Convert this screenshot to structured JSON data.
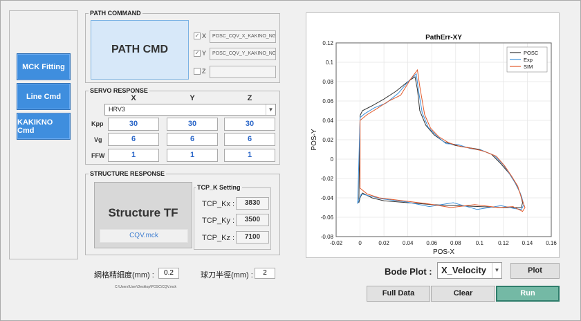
{
  "nav": {
    "mck_fitting": "MCK Fitting",
    "line_cmd": "Line Cmd",
    "kakikno_cmd": "KAKIKNO Cmd"
  },
  "path_command": {
    "title": "PATH COMMAND",
    "button_label": "PATH CMD",
    "x_label": "X",
    "y_label": "Y",
    "z_label": "Z",
    "x_checked": true,
    "y_checked": true,
    "z_checked": false,
    "x_file": "POSC_CQV_X_KAKINO_NG.c",
    "y_file": "POSC_CQV_Y_KAKINO_NG.c",
    "z_file": ""
  },
  "servo": {
    "title": "SERVO RESPONSE",
    "col_x": "X",
    "col_y": "Y",
    "col_z": "Z",
    "selected_model": "HRV3",
    "kpp_label": "Kpp",
    "vg_label": "Vg",
    "ffw_label": "FFW",
    "kpp": [
      "30",
      "30",
      "30"
    ],
    "vg": [
      "6",
      "6",
      "6"
    ],
    "ffw": [
      "1",
      "1",
      "1"
    ]
  },
  "structure": {
    "title": "STRUCTURE RESPONSE",
    "button_label": "Structure TF",
    "mck_file": "CQV.mck",
    "tcp_title": "TCP_K Setting",
    "kx_label": "TCP_Kx :",
    "ky_label": "TCP_Ky :",
    "kz_label": "TCP_Kz :",
    "kx": "3830",
    "ky": "3500",
    "kz": "7100"
  },
  "bottom": {
    "grid_label": "網格精細度(mm) :",
    "grid_value": "0.2",
    "radius_label": "球刀半徑(mm) :",
    "radius_value": "2",
    "path_text": "C:\\Users\\User\\Desktop\\POSC\\CQV.mck",
    "bode_label": "Bode Plot :",
    "bode_selected": "X_Velocity",
    "plot_button": "Plot",
    "full_data_button": "Full Data",
    "clear_button": "Clear",
    "run_button": "Run"
  },
  "chart_data": {
    "type": "line",
    "title": "PathErr-XY",
    "xlabel": "POS-X",
    "ylabel": "POS-Y",
    "xlim": [
      -0.02,
      0.16
    ],
    "ylim": [
      -0.08,
      0.12
    ],
    "xticks": [
      "-0.02",
      "0",
      "0.02",
      "0.04",
      "0.06",
      "0.08",
      "0.1",
      "0.12",
      "0.14",
      "0.16"
    ],
    "yticks": [
      "-0.08",
      "-0.06",
      "-0.04",
      "-0.02",
      "0",
      "0.02",
      "0.04",
      "0.06",
      "0.08",
      "0.1",
      "0.12"
    ],
    "grid": true,
    "legend_position": "top-right",
    "series": [
      {
        "name": "POSC",
        "color": "#333333",
        "x": [
          0.0,
          0.002,
          0.01,
          0.02,
          0.03,
          0.04,
          0.046,
          0.048,
          0.05,
          0.055,
          0.062,
          0.07,
          0.08,
          0.09,
          0.1,
          0.11,
          0.118,
          0.125,
          0.13,
          0.134,
          0.136,
          0.135,
          0.13,
          0.12,
          0.1,
          0.08,
          0.06,
          0.04,
          0.02,
          0.01,
          0.002,
          0.0,
          -0.001,
          0.0
        ],
        "y": [
          0.045,
          0.05,
          0.055,
          0.062,
          0.07,
          0.08,
          0.085,
          0.072,
          0.05,
          0.035,
          0.025,
          0.018,
          0.014,
          0.012,
          0.01,
          0.005,
          -0.005,
          -0.015,
          -0.025,
          -0.035,
          -0.045,
          -0.05,
          -0.05,
          -0.05,
          -0.049,
          -0.048,
          -0.047,
          -0.045,
          -0.043,
          -0.04,
          -0.035,
          -0.04,
          -0.045,
          0.045
        ]
      },
      {
        "name": "Exp",
        "color": "#3b8fd9",
        "x": [
          0.0,
          0.004,
          0.012,
          0.022,
          0.032,
          0.041,
          0.047,
          0.049,
          0.052,
          0.057,
          0.064,
          0.072,
          0.082,
          0.092,
          0.102,
          0.112,
          0.12,
          0.126,
          0.131,
          0.135,
          0.137,
          0.135,
          0.129,
          0.118,
          0.098,
          0.078,
          0.058,
          0.038,
          0.018,
          0.008,
          0.001,
          -0.002,
          0.0
        ],
        "y": [
          0.043,
          0.047,
          0.053,
          0.058,
          0.068,
          0.081,
          0.088,
          0.07,
          0.048,
          0.033,
          0.024,
          0.016,
          0.015,
          0.011,
          0.009,
          0.004,
          -0.006,
          -0.017,
          -0.027,
          -0.038,
          -0.047,
          -0.052,
          -0.051,
          -0.048,
          -0.052,
          -0.045,
          -0.049,
          -0.044,
          -0.041,
          -0.038,
          -0.036,
          -0.046,
          0.043
        ]
      },
      {
        "name": "SIM",
        "color": "#e2592a",
        "x": [
          0.0,
          0.006,
          0.014,
          0.024,
          0.034,
          0.042,
          0.048,
          0.05,
          0.054,
          0.059,
          0.066,
          0.074,
          0.084,
          0.094,
          0.104,
          0.114,
          0.121,
          0.127,
          0.132,
          0.135,
          0.138,
          0.136,
          0.128,
          0.116,
          0.096,
          0.076,
          0.056,
          0.036,
          0.016,
          0.006,
          0.0,
          0.0
        ],
        "y": [
          0.04,
          0.046,
          0.052,
          0.06,
          0.066,
          0.082,
          0.092,
          0.075,
          0.046,
          0.032,
          0.023,
          0.017,
          0.013,
          0.011,
          0.008,
          0.003,
          -0.007,
          -0.018,
          -0.028,
          -0.04,
          -0.05,
          -0.054,
          -0.049,
          -0.05,
          -0.047,
          -0.05,
          -0.046,
          -0.043,
          -0.04,
          -0.036,
          -0.03,
          0.04
        ]
      }
    ]
  }
}
